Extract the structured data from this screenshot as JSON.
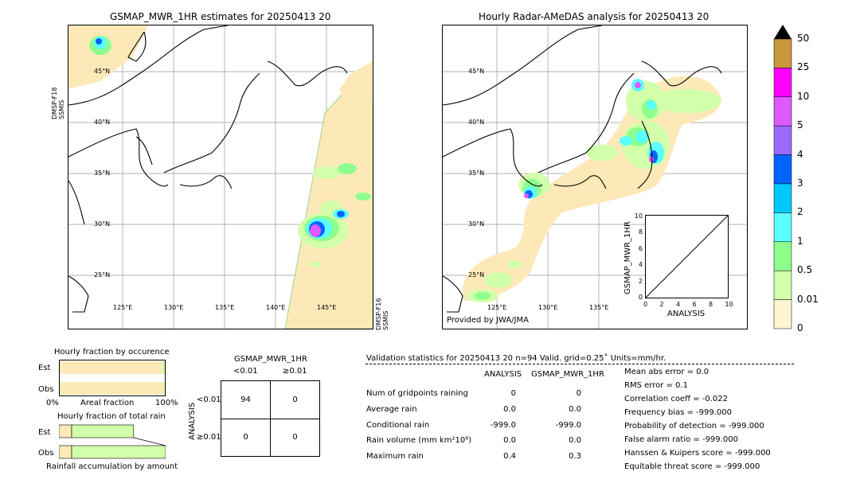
{
  "left_map": {
    "title": "GSMAP_MWR_1HR estimates for 20250413 20",
    "lat_labels": [
      "45°N",
      "40°N",
      "35°N",
      "30°N",
      "25°N"
    ],
    "lon_labels": [
      "125°E",
      "130°E",
      "135°E",
      "140°E",
      "145°E"
    ],
    "side_label_top": "DMSP-F18\nSSMIS",
    "side_label_bottom": "DMSP-F16\nSSMIS"
  },
  "right_map": {
    "title": "Hourly Radar-AMeDAS analysis for 20250413 20",
    "lat_labels": [
      "45°N",
      "40°N",
      "35°N",
      "30°N",
      "25°N"
    ],
    "lon_labels": [
      "125°E",
      "130°E",
      "135°E"
    ],
    "credit": "Provided by JWA/JMA",
    "inset": {
      "ylabel": "GSMAP_MWR_1HR",
      "xlabel": "ANALYSIS",
      "ticks": [
        "0",
        "2",
        "4",
        "6",
        "8",
        "10"
      ],
      "yticks": [
        "0",
        "2",
        "4",
        "6",
        "8",
        "10"
      ]
    }
  },
  "colorbar": {
    "labels": [
      "50",
      "25",
      "10",
      "5",
      "4",
      "3",
      "2",
      "1",
      "0.5",
      "0.01",
      "0"
    ],
    "colors": [
      "#c8963c",
      "#ff00ff",
      "#dc5aff",
      "#9b6bff",
      "#0064ff",
      "#00c8ff",
      "#5affff",
      "#8cff8c",
      "#d2ffaa",
      "#fff5d2"
    ],
    "over_color": "#000000"
  },
  "occurrence": {
    "title": "Hourly fraction by occurence",
    "rows": [
      {
        "label": "Est",
        "fraction": 0.98
      },
      {
        "label": "Obs",
        "fraction": 0.99
      }
    ],
    "axis_left": "0%",
    "axis_mid": "Areal fraction",
    "axis_right": "100%"
  },
  "total_rain": {
    "title": "Hourly fraction of total rain",
    "rows": [
      {
        "label": "Est",
        "fraction": 0.7
      },
      {
        "label": "Obs",
        "fraction": 1.0
      }
    ],
    "footer": "Rainfall accumulation by amount"
  },
  "contingency": {
    "title": "GSMAP_MWR_1HR",
    "col_headers": [
      "<0.01",
      "≥0.01"
    ],
    "row_headers": [
      "<0.01",
      "≥0.01"
    ],
    "side_label": "ANALYSIS",
    "cells": [
      [
        "94",
        "0"
      ],
      [
        "0",
        "0"
      ]
    ]
  },
  "validation": {
    "header": "Validation statistics for 20250413 20  n=94 Valid. grid=0.25˚ Units=mm/hr.",
    "col_analysis": "ANALYSIS",
    "col_gsmap": "GSMAP_MWR_1HR",
    "rows": [
      {
        "label": "Num of gridpoints raining",
        "analysis": "0",
        "gsmap": "0"
      },
      {
        "label": "Average rain",
        "analysis": "0.0",
        "gsmap": "0.0"
      },
      {
        "label": "Conditional rain",
        "analysis": "-999.0",
        "gsmap": "-999.0"
      },
      {
        "label": "Rain volume (mm km²10⁶)",
        "analysis": "0.0",
        "gsmap": "0.0"
      },
      {
        "label": "Maximum rain",
        "analysis": "0.4",
        "gsmap": "0.3"
      }
    ],
    "scores": [
      "Mean abs error =    0.0",
      "RMS error =    0.1",
      "Correlation coeff = -0.022",
      "Frequency bias = -999.000",
      "Probability of detection = -999.000",
      "False alarm ratio = -999.000",
      "Hanssen & Kuipers score = -999.000",
      "Equitable threat score = -999.000"
    ]
  },
  "chart_data": {
    "type": "scatter",
    "title": "",
    "xlabel": "ANALYSIS",
    "ylabel": "GSMAP_MWR_1HR",
    "xlim": [
      0,
      10
    ],
    "ylim": [
      0,
      10
    ],
    "series": [
      {
        "x": [
          0,
          10
        ],
        "y": [
          0,
          10
        ]
      }
    ]
  }
}
